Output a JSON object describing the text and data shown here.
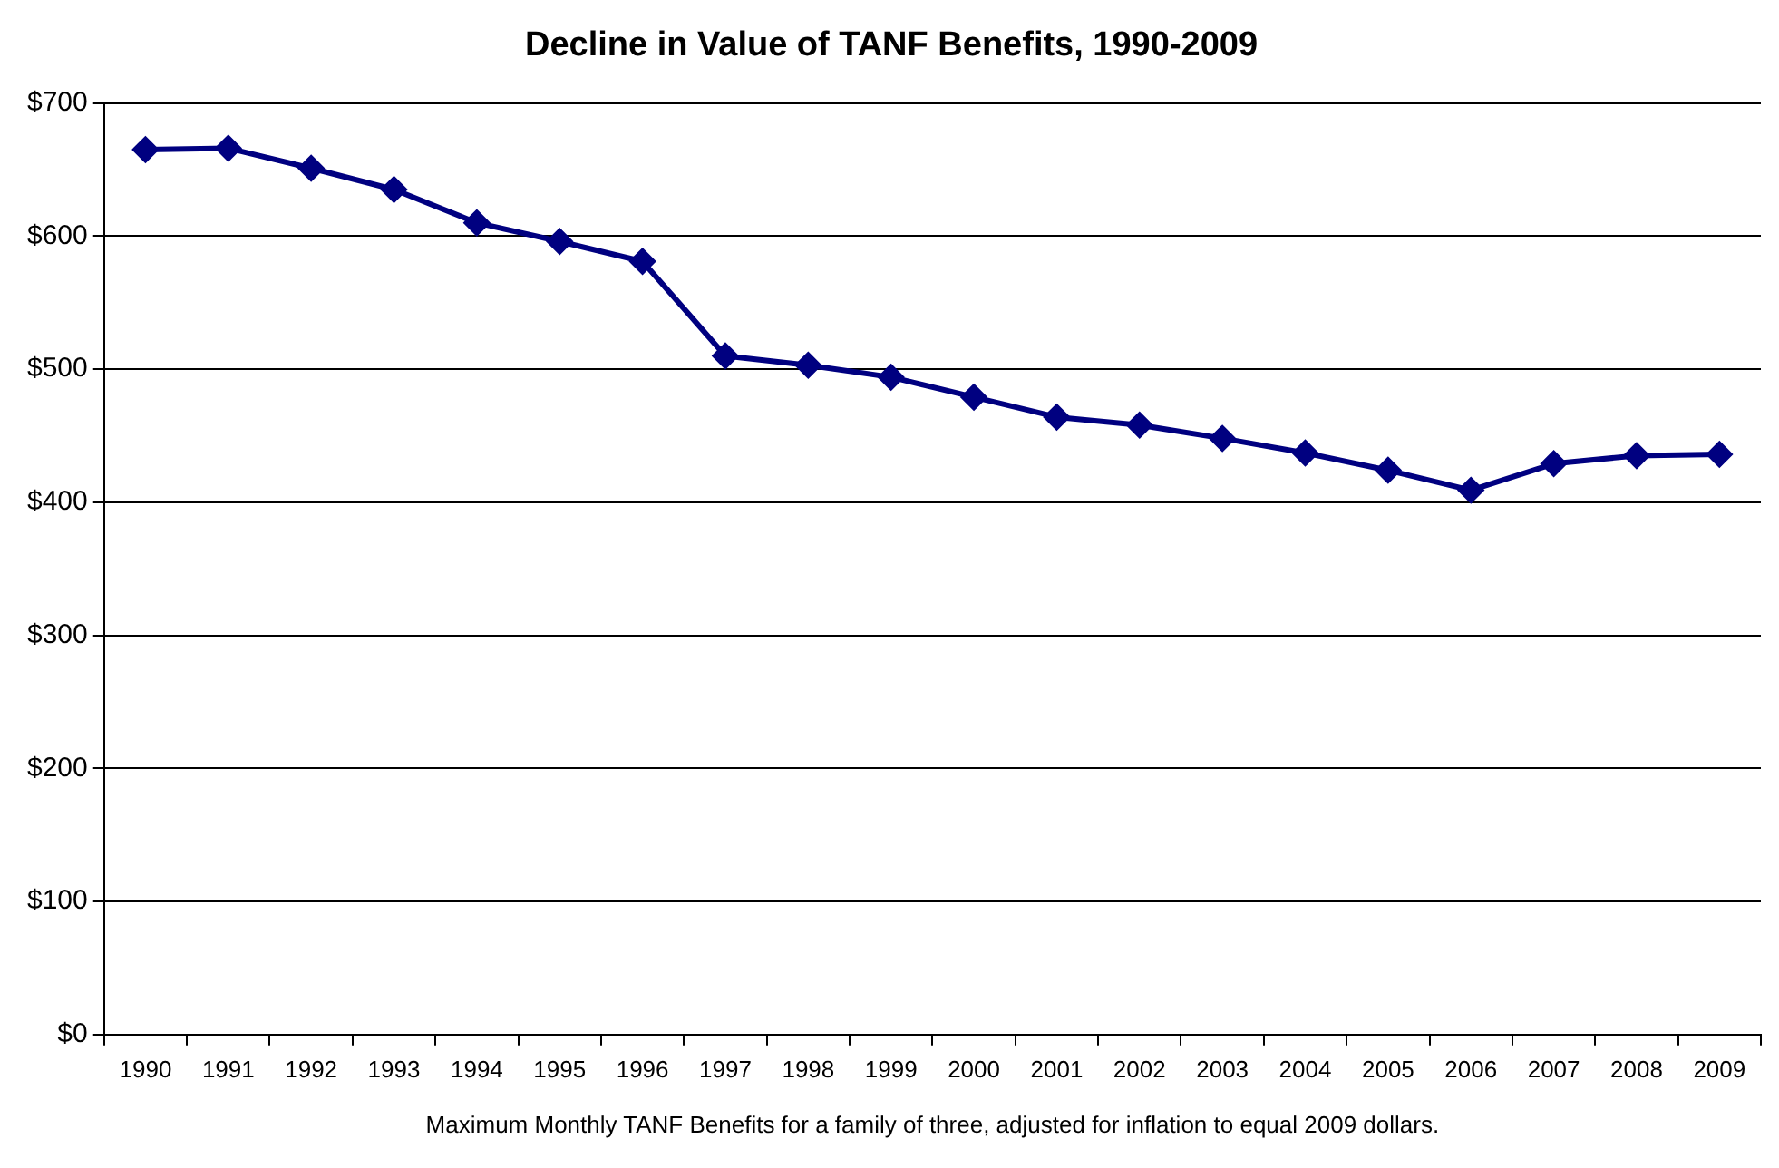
{
  "chart_data": {
    "type": "line",
    "title": "Decline in Value of TANF Benefits, 1990-2009",
    "categories": [
      "1990",
      "1991",
      "1992",
      "1993",
      "1994",
      "1995",
      "1996",
      "1997",
      "1998",
      "1999",
      "2000",
      "2001",
      "2002",
      "2003",
      "2004",
      "2005",
      "2006",
      "2007",
      "2008",
      "2009"
    ],
    "series": [
      {
        "color": "#000080",
        "values": [
          665,
          666,
          651,
          635,
          610,
          596,
          581,
          510,
          503,
          494,
          479,
          464,
          458,
          448,
          437,
          424,
          409,
          429,
          435,
          436
        ]
      }
    ],
    "ylim": [
      0,
      700
    ],
    "yticks": [
      {
        "value": 0,
        "label": "$0"
      },
      {
        "value": 100,
        "label": "$100"
      },
      {
        "value": 200,
        "label": "$200"
      },
      {
        "value": 300,
        "label": "$300"
      },
      {
        "value": 400,
        "label": "$400"
      },
      {
        "value": 500,
        "label": "$500"
      },
      {
        "value": 600,
        "label": "$600"
      },
      {
        "value": 700,
        "label": "$700"
      }
    ],
    "grid": "y",
    "legend": false,
    "marker": "diamond",
    "line_style": "solid",
    "annotations": [
      "Maximum Monthly TANF Benefits for a family of three, adjusted for inflation to equal 2009 dollars."
    ]
  }
}
